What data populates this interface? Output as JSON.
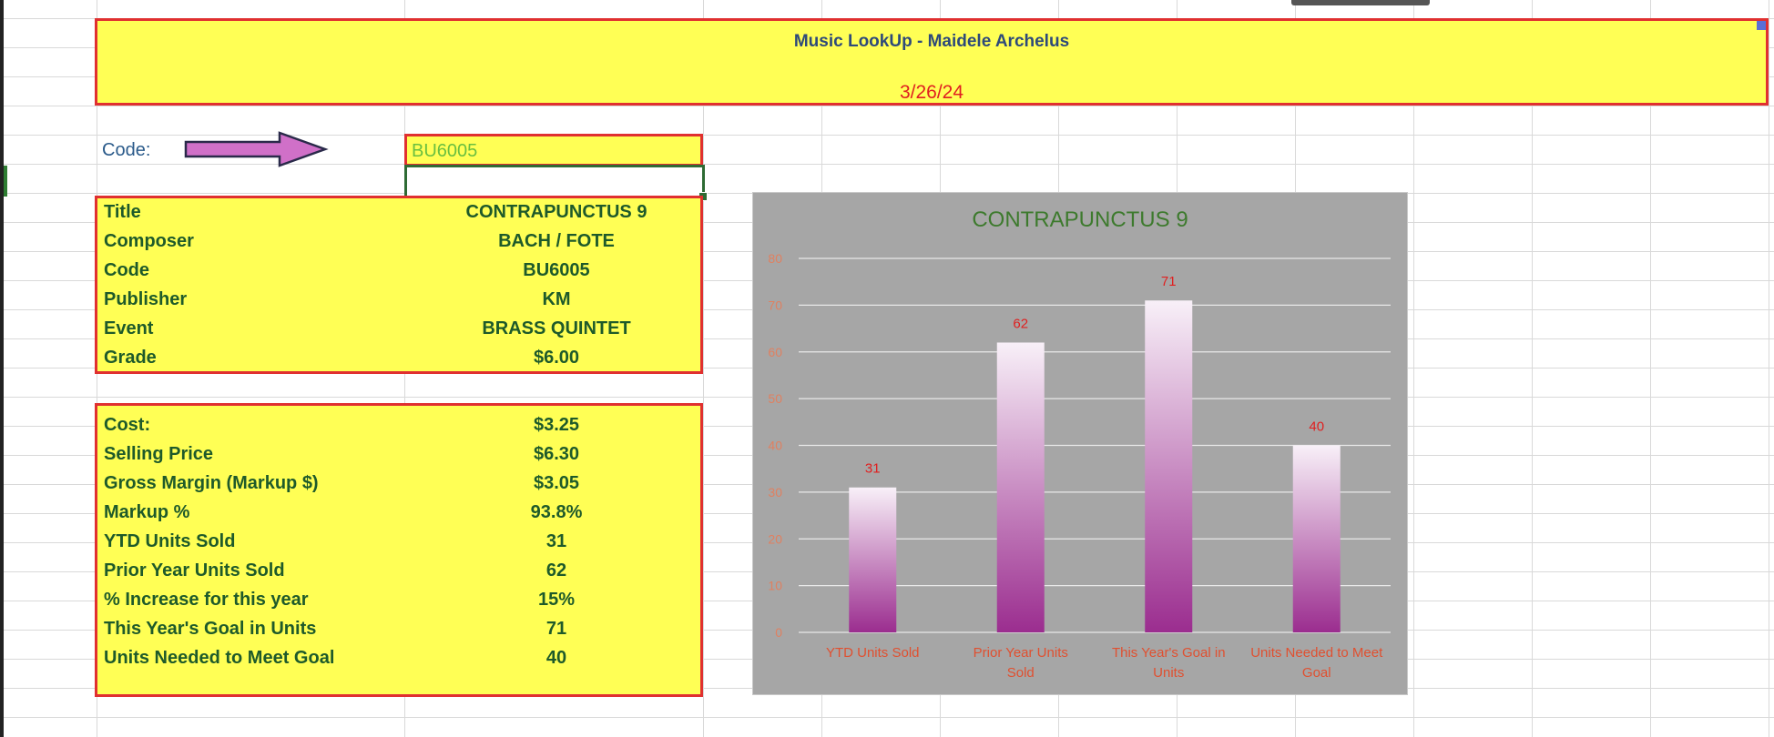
{
  "header": {
    "title": "Music LookUp - Maidele Archelus",
    "date": "3/26/24"
  },
  "code": {
    "label": "Code:",
    "value": "BU6005"
  },
  "info": [
    {
      "label": "Title",
      "value": "CONTRAPUNCTUS 9"
    },
    {
      "label": "Composer",
      "value": "BACH / FOTE"
    },
    {
      "label": "Code",
      "value": "BU6005"
    },
    {
      "label": "Publisher",
      "value": "KM"
    },
    {
      "label": "Event",
      "value": "BRASS QUINTET"
    },
    {
      "label": "Grade",
      "value": "$6.00"
    }
  ],
  "metrics": [
    {
      "label": "Cost:",
      "value": "$3.25"
    },
    {
      "label": "Selling Price",
      "value": "$6.30"
    },
    {
      "label": "Gross Margin (Markup $)",
      "value": "$3.05"
    },
    {
      "label": "Markup %",
      "value": "93.8%"
    },
    {
      "label": "YTD Units Sold",
      "value": "31"
    },
    {
      "label": "Prior Year Units Sold",
      "value": "62"
    },
    {
      "label": "% Increase for this year",
      "value": "15%"
    },
    {
      "label": "This Year's Goal in Units",
      "value": "71"
    },
    {
      "label": "Units Needed to Meet Goal",
      "value": "40"
    }
  ],
  "colors": {
    "cell_fill": "#ffff55",
    "box_border": "#e03030",
    "label_text": "#1e5a2a",
    "bar_top": "#f8f0f8",
    "bar_bottom": "#9b2d8f",
    "chart_bg": "#a6a6a6",
    "arrow_fill": "#d070c8"
  },
  "chart_data": {
    "type": "bar",
    "title": "CONTRAPUNCTUS 9",
    "categories": [
      "YTD Units Sold",
      "Prior Year Units Sold",
      "This Year's Goal in Units",
      "Units Needed to Meet Goal"
    ],
    "values": [
      31,
      62,
      71,
      40
    ],
    "ylim": [
      0,
      80
    ],
    "yticks": [
      0,
      10,
      20,
      30,
      40,
      50,
      60,
      70,
      80
    ],
    "grid": true,
    "data_labels": true
  }
}
